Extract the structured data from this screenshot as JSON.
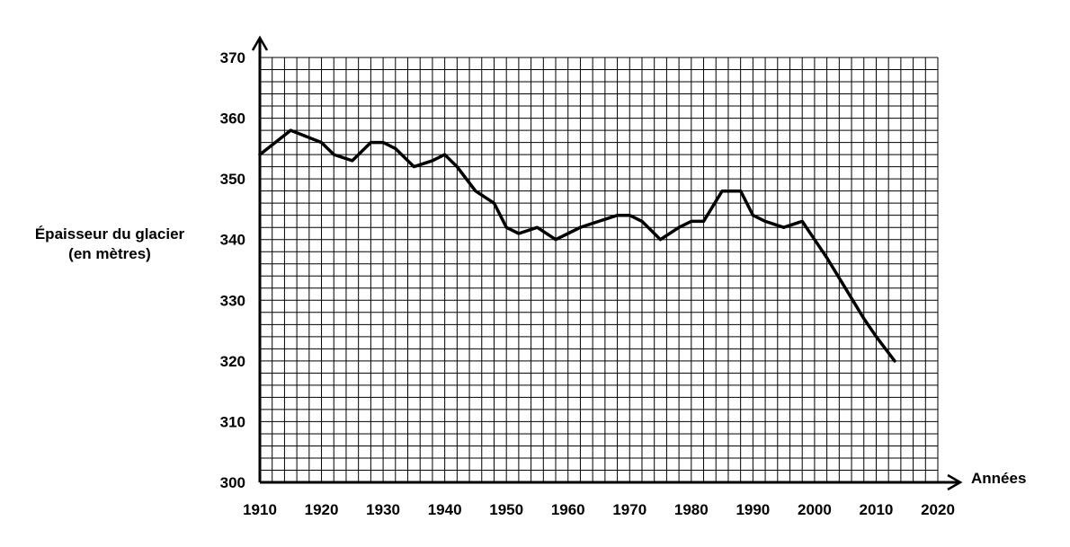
{
  "chart_data": {
    "type": "line",
    "title": "",
    "ylabel_lines": [
      "Épaisseur du glacier",
      "(en mètres)"
    ],
    "xlabel": "Années",
    "xlim": [
      1910,
      2020
    ],
    "ylim": [
      300,
      370
    ],
    "x_ticks": [
      1910,
      1920,
      1930,
      1940,
      1950,
      1960,
      1970,
      1980,
      1990,
      2000,
      2010,
      2020
    ],
    "y_ticks": [
      300,
      310,
      320,
      330,
      340,
      350,
      360,
      370
    ],
    "x_ticks_labels": [
      "1910",
      "1920",
      "1930",
      "1940",
      "1950",
      "1960",
      "1970",
      "1980",
      "1990",
      "2000",
      "2010",
      "2020"
    ],
    "y_ticks_labels": [
      "300",
      "310",
      "320",
      "330",
      "340",
      "350",
      "360",
      "370"
    ],
    "grid": true,
    "grid_minor": {
      "x_step": 2,
      "y_step": 2
    },
    "line_color": "#000000",
    "series": [
      {
        "x": [
          1910,
          1915,
          1920,
          1922,
          1925,
          1928,
          1930,
          1932,
          1935,
          1938,
          1940,
          1942,
          1945,
          1948,
          1950,
          1952,
          1955,
          1958,
          1960,
          1962,
          1965,
          1968,
          1970,
          1972,
          1975,
          1978,
          1980,
          1982,
          1985,
          1988,
          1990,
          1992,
          1995,
          1998,
          2000,
          2002,
          2005,
          2008,
          2010,
          2013
        ],
        "y": [
          354,
          358,
          356,
          354,
          353,
          356,
          356,
          355,
          352,
          353,
          354,
          352,
          348,
          346,
          342,
          341,
          342,
          340,
          341,
          342,
          343,
          344,
          344,
          343,
          340,
          342,
          343,
          343,
          348,
          348,
          344,
          343,
          342,
          343,
          340,
          337,
          332,
          327,
          324,
          320
        ]
      }
    ]
  }
}
